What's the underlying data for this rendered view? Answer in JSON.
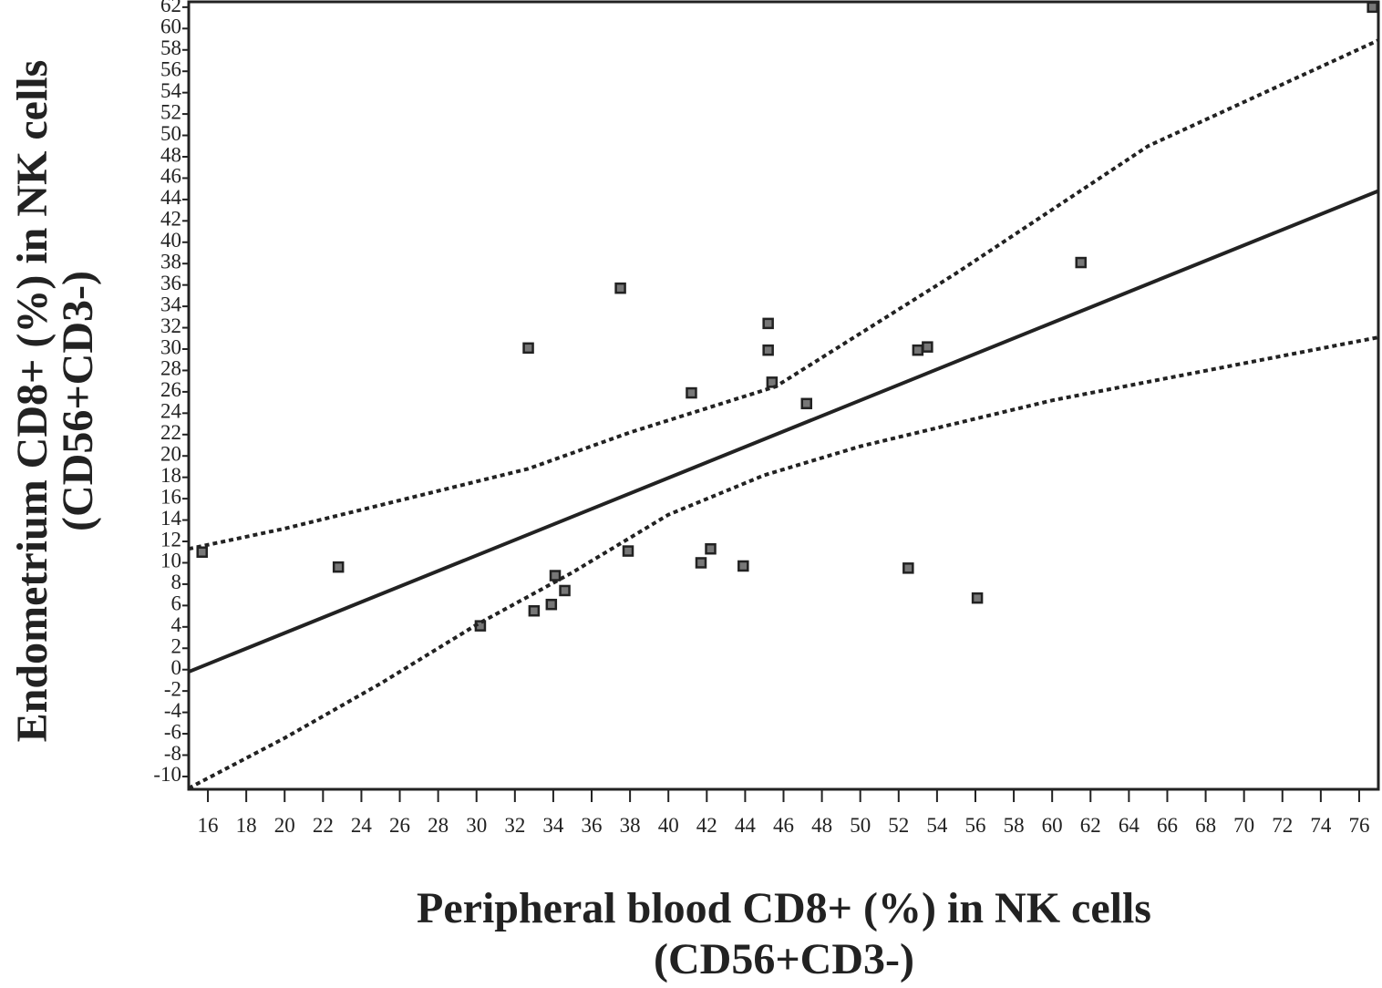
{
  "chart_data": {
    "type": "scatter",
    "x_label": [
      "Peripheral blood CD8+ (%) in NK cells",
      "(CD56+CD3-)"
    ],
    "y_label": [
      "Endometrium CD8+ (%) in NK cells",
      "(CD56+CD3-)"
    ],
    "xlim": [
      15,
      77
    ],
    "ylim": [
      -11.2,
      62.5
    ],
    "xticks": [
      16,
      18,
      20,
      22,
      24,
      26,
      28,
      30,
      32,
      34,
      36,
      38,
      40,
      42,
      44,
      46,
      48,
      50,
      52,
      54,
      56,
      58,
      60,
      62,
      64,
      66,
      68,
      70,
      72,
      74,
      76
    ],
    "yticks": [
      -10,
      -8,
      -6,
      -4,
      -2,
      0,
      2,
      4,
      6,
      8,
      10,
      12,
      14,
      16,
      18,
      20,
      22,
      24,
      26,
      28,
      30,
      32,
      34,
      36,
      38,
      40,
      42,
      44,
      46,
      48,
      50,
      52,
      54,
      56,
      58,
      60,
      62
    ],
    "series": [
      {
        "style": "markers",
        "color": "#777777",
        "x": [
          15.7,
          22.8,
          30.2,
          32.7,
          33.0,
          33.9,
          34.1,
          34.6,
          37.5,
          37.9,
          41.2,
          41.7,
          42.2,
          43.9,
          45.2,
          45.2,
          45.4,
          47.2,
          52.5,
          53.0,
          53.5,
          56.1,
          61.5,
          76.7
        ],
        "values": [
          11.0,
          9.6,
          4.1,
          30.1,
          5.5,
          6.1,
          8.8,
          7.4,
          35.7,
          11.1,
          25.9,
          10.0,
          11.3,
          9.7,
          32.4,
          29.9,
          26.9,
          24.9,
          9.5,
          29.9,
          30.2,
          6.7,
          38.1,
          62.0
        ]
      },
      {
        "style": "solid",
        "color": "#222222",
        "x": [
          15,
          77
        ],
        "values": [
          -0.2,
          44.8
        ]
      },
      {
        "style": "dotted",
        "color": "#222222",
        "x": [
          15,
          20,
          25,
          32.7,
          38,
          45.6,
          55,
          65,
          77
        ],
        "values": [
          11.3,
          13.2,
          15.4,
          18.8,
          22.2,
          26.5,
          37.1,
          49,
          58.9
        ]
      },
      {
        "style": "dotted",
        "color": "#222222",
        "x": [
          15,
          20,
          25,
          30,
          35,
          40,
          45,
          50,
          60,
          77
        ],
        "values": [
          -11.1,
          -6.4,
          -1.3,
          4.2,
          9.1,
          14.5,
          18.2,
          20.9,
          25.2,
          31.1
        ]
      }
    ]
  }
}
